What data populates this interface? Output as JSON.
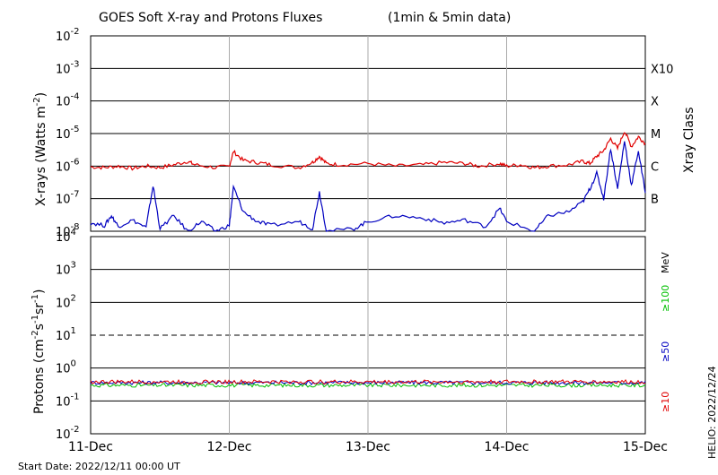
{
  "chart_data": [
    {
      "type": "line",
      "panel": "xrays",
      "title": "GOES Soft X-ray and Protons Fluxes",
      "title_suffix": "(1min & 5min data)",
      "ylabel_base": "X-rays (Watts m",
      "ylabel_exp": "-2",
      "ylabel_tail": ")",
      "yscale": "log",
      "ylim": [
        1e-08,
        0.01
      ],
      "yticks": [
        {
          "base": "10",
          "exp": "-8"
        },
        {
          "base": "10",
          "exp": "-7"
        },
        {
          "base": "10",
          "exp": "-6"
        },
        {
          "base": "10",
          "exp": "-5"
        },
        {
          "base": "10",
          "exp": "-4"
        },
        {
          "base": "10",
          "exp": "-3"
        },
        {
          "base": "10",
          "exp": "-2"
        }
      ],
      "class_axis_label": "Xray Class",
      "classes": [
        {
          "label": "B",
          "value": 1e-07
        },
        {
          "label": "C",
          "value": 1e-06
        },
        {
          "label": "M",
          "value": 1e-05
        },
        {
          "label": "X",
          "value": 0.0001
        },
        {
          "label": "X10",
          "value": 0.001
        }
      ],
      "grid_lines_at": [
        1e-07,
        1e-06,
        1e-05,
        0.0001,
        0.001
      ],
      "x_days": [
        0,
        4
      ],
      "series": [
        {
          "color": "#e00000",
          "points": [
            [
              0.0,
              9.5e-07
            ],
            [
              0.1,
              9e-07
            ],
            [
              0.2,
              1e-06
            ],
            [
              0.3,
              8.5e-07
            ],
            [
              0.4,
              1e-06
            ],
            [
              0.5,
              9e-07
            ],
            [
              0.6,
              1.1e-06
            ],
            [
              0.7,
              1.4e-06
            ],
            [
              0.75,
              1.1e-06
            ],
            [
              0.9,
              9e-07
            ],
            [
              1.0,
              1e-06
            ],
            [
              1.03,
              2.8e-06
            ],
            [
              1.1,
              1.5e-06
            ],
            [
              1.2,
              1.3e-06
            ],
            [
              1.3,
              1.1e-06
            ],
            [
              1.5,
              9e-07
            ],
            [
              1.6,
              1.3e-06
            ],
            [
              1.65,
              2e-06
            ],
            [
              1.7,
              1.2e-06
            ],
            [
              1.8,
              1.1e-06
            ],
            [
              2.0,
              1.2e-06
            ],
            [
              2.2,
              1e-06
            ],
            [
              2.4,
              1.1e-06
            ],
            [
              2.55,
              1.3e-06
            ],
            [
              2.7,
              1.2e-06
            ],
            [
              2.8,
              1e-06
            ],
            [
              2.95,
              1.2e-06
            ],
            [
              3.0,
              1e-06
            ],
            [
              3.1,
              1.1e-06
            ],
            [
              3.2,
              9e-07
            ],
            [
              3.3,
              1e-06
            ],
            [
              3.45,
              1.1e-06
            ],
            [
              3.55,
              1.4e-06
            ],
            [
              3.6,
              1.2e-06
            ],
            [
              3.65,
              2e-06
            ],
            [
              3.7,
              3e-06
            ],
            [
              3.75,
              7e-06
            ],
            [
              3.8,
              3.5e-06
            ],
            [
              3.85,
              1.2e-05
            ],
            [
              3.9,
              4e-06
            ],
            [
              3.95,
              8e-06
            ],
            [
              4.0,
              5e-06
            ]
          ]
        },
        {
          "color": "#0000c0",
          "points": [
            [
              0.0,
              1.8e-08
            ],
            [
              0.1,
              1.5e-08
            ],
            [
              0.15,
              3e-08
            ],
            [
              0.2,
              1.4e-08
            ],
            [
              0.3,
              2.2e-08
            ],
            [
              0.4,
              1.3e-08
            ],
            [
              0.45,
              2.5e-07
            ],
            [
              0.5,
              1.2e-08
            ],
            [
              0.6,
              3e-08
            ],
            [
              0.7,
              1e-08
            ],
            [
              0.8,
              2e-08
            ],
            [
              0.9,
              1e-08
            ],
            [
              1.0,
              1.5e-08
            ],
            [
              1.03,
              2.3e-07
            ],
            [
              1.1,
              4e-08
            ],
            [
              1.2,
              2e-08
            ],
            [
              1.3,
              1.5e-08
            ],
            [
              1.5,
              2e-08
            ],
            [
              1.6,
              1.2e-08
            ],
            [
              1.65,
              1.6e-07
            ],
            [
              1.7,
              1e-08
            ],
            [
              1.9,
              1.2e-08
            ],
            [
              2.0,
              2e-08
            ],
            [
              2.2,
              3e-08
            ],
            [
              2.4,
              2.5e-08
            ],
            [
              2.55,
              1.8e-08
            ],
            [
              2.7,
              2.2e-08
            ],
            [
              2.85,
              1.4e-08
            ],
            [
              2.95,
              5e-08
            ],
            [
              3.0,
              2e-08
            ],
            [
              3.2,
              1e-08
            ],
            [
              3.3,
              3e-08
            ],
            [
              3.45,
              4e-08
            ],
            [
              3.55,
              8e-08
            ],
            [
              3.6,
              2e-07
            ],
            [
              3.65,
              6e-07
            ],
            [
              3.7,
              1e-07
            ],
            [
              3.75,
              3.5e-06
            ],
            [
              3.8,
              2e-07
            ],
            [
              3.85,
              6e-06
            ],
            [
              3.9,
              2.5e-07
            ],
            [
              3.95,
              3e-06
            ],
            [
              4.0,
              1.5e-07
            ]
          ]
        }
      ]
    },
    {
      "type": "line",
      "panel": "protons",
      "ylabel_text": "Protons (cm",
      "ylabel_sup1": "-2",
      "ylabel_mid": "s",
      "ylabel_sup2": "-1",
      "ylabel_mid2": "sr",
      "ylabel_sup3": "-1",
      "ylabel_tail": ")",
      "yscale": "log",
      "ylim": [
        0.01,
        10000
      ],
      "yticks": [
        {
          "base": "10",
          "exp": "-2"
        },
        {
          "base": "10",
          "exp": "-1"
        },
        {
          "base": "10",
          "exp": "0"
        },
        {
          "base": "10",
          "exp": "1"
        },
        {
          "base": "10",
          "exp": "2"
        },
        {
          "base": "10",
          "exp": "3"
        },
        {
          "base": "10",
          "exp": "4"
        }
      ],
      "threshold_dashed_at": 10,
      "grid_lines_at": [
        0.1,
        1,
        100,
        1000
      ],
      "energy_unit": "MeV",
      "energy_labels": [
        {
          "label": "≥100",
          "color": "#00c000"
        },
        {
          "label": "≥50",
          "color": "#0000c0"
        },
        {
          "label": "≥10",
          "color": "#e00000"
        }
      ],
      "series": [
        {
          "color": "#00c000",
          "level": 0.3
        },
        {
          "color": "#0000c0",
          "level": 0.36
        },
        {
          "color": "#e00000",
          "level": 0.38
        }
      ]
    }
  ],
  "x_ticks": [
    "11-Dec",
    "12-Dec",
    "13-Dec",
    "14-Dec",
    "15-Dec"
  ],
  "footer": {
    "start_date": "Start Date: 2022/12/11 00:00 UT",
    "credit": "HELIO: 2022/12/24"
  }
}
